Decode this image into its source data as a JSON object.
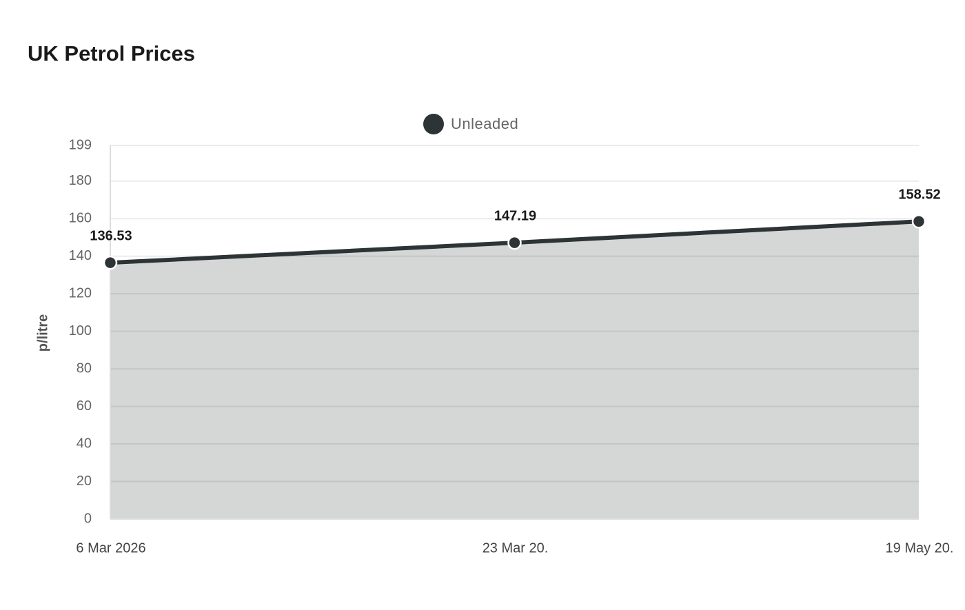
{
  "chart_data": {
    "type": "area",
    "title": "UK Petrol Prices",
    "y_label": "p/litre",
    "categories": [
      "6 Mar 2026",
      "23 Mar 20.",
      "19 May 20."
    ],
    "series": [
      {
        "name": "Unleaded",
        "color": "#2d3436",
        "fill": "#d5d6d6",
        "values": [
          136.53,
          147.19,
          158.52
        ]
      }
    ],
    "ylim": [
      0,
      199
    ],
    "yticks": [
      0,
      20,
      40,
      60,
      80,
      100,
      120,
      140,
      160,
      180,
      199
    ],
    "grid": true,
    "legend": "top"
  }
}
